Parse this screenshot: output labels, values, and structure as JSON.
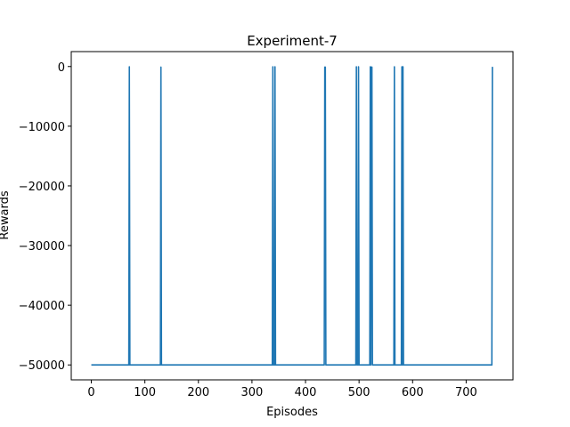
{
  "chart_data": {
    "type": "line",
    "title": "Experiment-7",
    "xlabel": "Episodes",
    "ylabel": "Rewards",
    "xlim": [
      -37.5,
      787.5
    ],
    "ylim": [
      -52500,
      2500
    ],
    "xticks": [
      0,
      100,
      200,
      300,
      400,
      500,
      600,
      700
    ],
    "yticks": [
      0,
      -10000,
      -20000,
      -30000,
      -40000,
      -50000
    ],
    "ytick_labels": [
      "0",
      "−10000",
      "−20000",
      "−30000",
      "−40000",
      "−50000"
    ],
    "grid": false,
    "series": [
      {
        "color": "#1f77b4",
        "baseline": -50000,
        "x_range": [
          0,
          749
        ],
        "spikes": [
          {
            "episode": 71,
            "reward": -50
          },
          {
            "episode": 130,
            "reward": -100
          },
          {
            "episode": 339,
            "reward": -50
          },
          {
            "episode": 343,
            "reward": -50
          },
          {
            "episode": 436,
            "reward": -100
          },
          {
            "episode": 437,
            "reward": -100
          },
          {
            "episode": 495,
            "reward": -50
          },
          {
            "episode": 499,
            "reward": -50
          },
          {
            "episode": 521,
            "reward": -50
          },
          {
            "episode": 523,
            "reward": -100
          },
          {
            "episode": 524,
            "reward": -100
          },
          {
            "episode": 566,
            "reward": -50
          },
          {
            "episode": 580,
            "reward": -50
          },
          {
            "episode": 582,
            "reward": -50
          },
          {
            "episode": 749,
            "reward": -50
          }
        ]
      }
    ]
  }
}
